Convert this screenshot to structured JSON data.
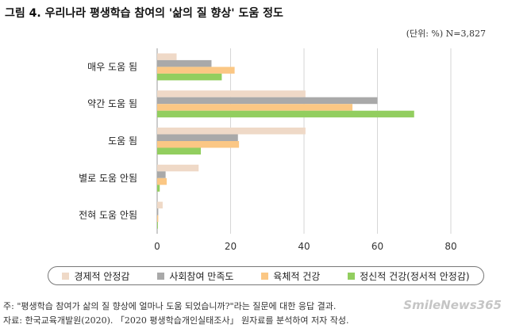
{
  "title": "그림 4. 우리나라 평생학습 참여의 '삶의 질 향상' 도움 정도",
  "unit_note": "(단위: %) N=3,827",
  "note_line": "주: \"평생학습 참여가 삶의 질 향상에 얼마나 도움 되었습니까?\"라는 질문에 대한 응답 결과.",
  "source_line": "자료: 한국교육개발원(2020). 「2020 평생학습개인실태조사」 원자료를 분석하여 저자 작성.",
  "watermark": "SmileNews365",
  "chart_data": {
    "type": "bar",
    "orientation": "horizontal",
    "categories": [
      "매우 도움 됨",
      "약간 도움 됨",
      "도움 됨",
      "별로 도움 안됨",
      "전혀 도움 안됨"
    ],
    "xlim": [
      0,
      80
    ],
    "xticks": [
      0,
      20,
      40,
      60,
      80
    ],
    "grid": true,
    "legend_position": "bottom",
    "series": [
      {
        "name": "경제적 안정감",
        "color": "#efd9c7",
        "values": [
          5.3,
          40.4,
          40.4,
          11.3,
          1.5
        ]
      },
      {
        "name": "사회참여 만족도",
        "color": "#a9a9a9",
        "values": [
          14.8,
          60.0,
          22.0,
          2.3,
          0.3
        ]
      },
      {
        "name": "육체적 건강",
        "color": "#fbc784",
        "values": [
          21.1,
          53.2,
          22.3,
          2.6,
          0.3
        ]
      },
      {
        "name": "정신적 건강(정서적 안정감)",
        "color": "#92ce5f",
        "values": [
          17.6,
          70.0,
          11.9,
          0.7,
          0.2
        ]
      }
    ]
  }
}
